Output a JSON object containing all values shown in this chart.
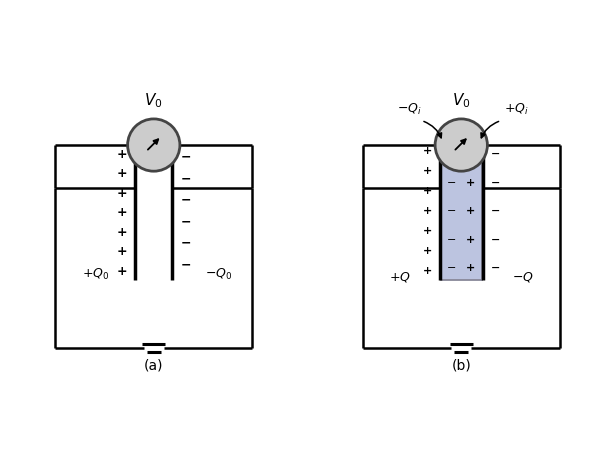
{
  "fig_width": 6.15,
  "fig_height": 4.5,
  "dpi": 100,
  "bg_color": "#ffffff",
  "circuit_lw": 1.8,
  "plate_lw": 2.5,
  "voltmeter_face": "#cccccc",
  "voltmeter_border": "#444444",
  "voltmeter_r": 0.085,
  "dielectric_face": "#bcc4e0",
  "dielectric_edge": "#888899"
}
